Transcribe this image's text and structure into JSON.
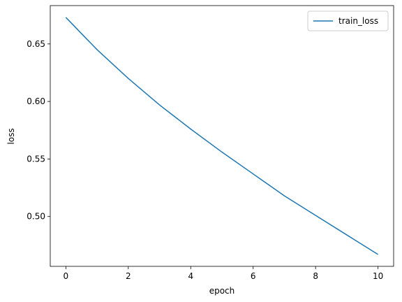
{
  "chart_data": {
    "type": "line",
    "x": [
      0,
      1,
      2,
      3,
      4,
      5,
      6,
      7,
      8,
      9,
      10
    ],
    "series": [
      {
        "name": "train_loss",
        "color": "#1f77b4",
        "values": [
          0.673,
          0.645,
          0.62,
          0.597,
          0.576,
          0.556,
          0.537,
          0.518,
          0.501,
          0.484,
          0.467
        ]
      }
    ],
    "xlabel": "epoch",
    "ylabel": "loss",
    "xlim": [
      -0.5,
      10.5
    ],
    "xticks": [
      0,
      2,
      4,
      6,
      8,
      10
    ],
    "ylim": [
      0.4567,
      0.6833
    ],
    "yticks": [
      {
        "value": 0.5,
        "label": "0.50"
      },
      {
        "value": 0.55,
        "label": "0.55"
      },
      {
        "value": 0.6,
        "label": "0.60"
      },
      {
        "value": 0.65,
        "label": "0.65"
      }
    ],
    "legend": "upper right"
  }
}
